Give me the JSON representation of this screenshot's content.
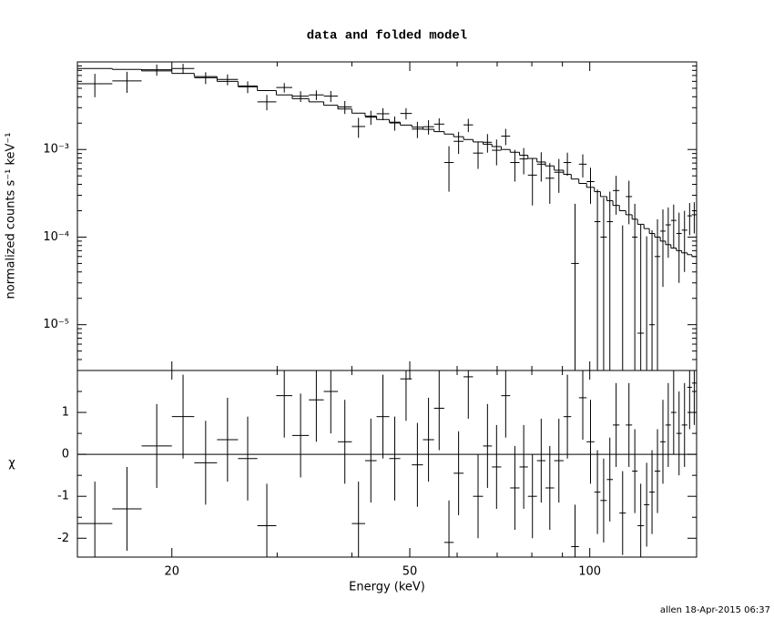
{
  "chart_data": {
    "type": "spectrum",
    "title": "data and folded model",
    "xlabel": "Energy (keV)",
    "footer": "allen 18-Apr-2015 06:37",
    "xscale": "log",
    "xlim": [
      13.9,
      150.9
    ],
    "xticks": [
      20,
      50,
      100
    ],
    "xminorticks": [
      30,
      40,
      60,
      70,
      80,
      90
    ],
    "bins": [
      13.9,
      15.9,
      17.8,
      20,
      21.8,
      23.8,
      25.8,
      27.8,
      29.9,
      31.8,
      33.9,
      35.9,
      37.9,
      40.0,
      42.1,
      44.0,
      46.2,
      48.2,
      50.4,
      52.6,
      54.9,
      57.1,
      59.2,
      61.5,
      63.8,
      66.3,
      68.6,
      71.1,
      73.6,
      76.3,
      78.8,
      81.6,
      84.3,
      87.2,
      90.4,
      93.1,
      95.9,
      98.8,
      101.8,
      104.2,
      106.8,
      109.3,
      112.1,
      114.9,
      117.7,
      120.2,
      123.2,
      125.8,
      128.4,
      131.2,
      133.9,
      136.7,
      139.6,
      142.5,
      145.6,
      148.2,
      150.9
    ],
    "panels": [
      {
        "ylabel": "normalized counts s⁻¹ keV⁻¹",
        "yscale": "log",
        "ylim": [
          3e-06,
          0.01
        ],
        "yticks": [
          {
            "value": 0.001,
            "label": "10⁻³"
          },
          {
            "value": 0.0001,
            "label": "10⁻⁴"
          },
          {
            "value": 1e-05,
            "label": "10⁻⁵"
          }
        ],
        "yminorticks": [
          4e-06,
          5e-06,
          6e-06,
          7e-06,
          8e-06,
          9e-06,
          2e-05,
          3e-05,
          4e-05,
          5e-05,
          6e-05,
          7e-05,
          8e-05,
          9e-05,
          0.0002,
          0.0003,
          0.0004,
          0.0005,
          0.0006,
          0.0007,
          0.0008,
          0.0009,
          0.002,
          0.003,
          0.004,
          0.005,
          0.006,
          0.007,
          0.008,
          0.009
        ],
        "series": [
          {
            "style": "errorbar",
            "color": "#000000",
            "values": [
              0.00563,
              0.00607,
              0.00814,
              0.0084,
              0.0066,
              0.0063,
              0.0052,
              0.0035,
              0.0051,
              0.00406,
              0.0042,
              0.00407,
              0.00306,
              0.00183,
              0.00234,
              0.00256,
              0.00201,
              0.00258,
              0.00171,
              0.00182,
              0.00195,
              0.00071,
              0.00124,
              0.00191,
              0.00091,
              0.00121,
              0.00098,
              0.00142,
              0.00071,
              0.00078,
              0.00051,
              0.00068,
              0.00047,
              0.00055,
              0.00071,
              5e-05,
              0.00068,
              0.00043,
              0.00015,
              0.0001,
              0.00015,
              0.00034,
              -2.4e-05,
              0.00029,
              0.0001,
              8e-06,
              -1.8e-05,
              1e-05,
              6e-05,
              0.000117,
              0.000138,
              0.000155,
              0.00011,
              0.00012,
              0.000175,
              0.00018
            ],
            "errors": [
              0.00168,
              0.00164,
              0.00119,
              0.00111,
              0.00102,
              0.0009,
              0.0008,
              0.0007,
              0.00063,
              0.00057,
              0.00053,
              0.00058,
              0.00052,
              0.00047,
              0.00043,
              0.0004,
              0.00037,
              0.00038,
              0.00036,
              0.00034,
              0.00032,
              0.00038,
              0.00035,
              0.00033,
              0.00031,
              0.00029,
              0.00032,
              0.0003,
              0.00028,
              0.00026,
              0.00028,
              0.00025,
              0.00023,
              0.00023,
              0.00021,
              0.00019,
              0.0002,
              0.00019,
              0.0002,
              0.00018,
              0.00018,
              0.00016,
              0.00016,
              0.00015,
              0.00014,
              0.00013,
              0.00012,
              0.00011,
              0.0001,
              9e-05,
              8e-05,
              8e-05,
              8e-05,
              8e-05,
              7e-05,
              7e-05
            ]
          },
          {
            "style": "step",
            "color": "#000000",
            "values": [
              0.0084,
              0.0082,
              0.0079,
              0.0074,
              0.0068,
              0.006,
              0.0053,
              0.0047,
              0.0042,
              0.0038,
              0.0035,
              0.0032,
              0.0029,
              0.0026,
              0.0024,
              0.0022,
              0.00205,
              0.0019,
              0.0018,
              0.0017,
              0.0016,
              0.0015,
              0.0014,
              0.0013,
              0.00122,
              0.00115,
              0.00108,
              0.001,
              0.00093,
              0.00086,
              0.00079,
              0.00072,
              0.00065,
              0.00058,
              0.00052,
              0.00046,
              0.00041,
              0.00037,
              0.00033,
              0.00029,
              0.00026,
              0.00023,
              0.0002,
              0.00018,
              0.00016,
              0.00014,
              0.000125,
              0.00011,
              0.0001,
              9e-05,
              8.2e-05,
              7.5e-05,
              7e-05,
              6.6e-05,
              6.3e-05,
              6e-05
            ]
          }
        ]
      },
      {
        "ylabel": "χ",
        "yscale": "linear",
        "ylim": [
          -2.45,
          2
        ],
        "yticks": [
          -2,
          -1,
          0,
          1
        ],
        "yminorticks": [
          -1.5,
          -0.5,
          0.5,
          1.5
        ],
        "reference_line": {
          "value": 0,
          "color": "#00e000"
        },
        "series": [
          {
            "style": "errorbar",
            "color": "#000000",
            "values": [
              -1.65,
              -1.3,
              0.2,
              0.9,
              -0.2,
              0.35,
              -0.1,
              -1.7,
              1.4,
              0.45,
              1.3,
              1.5,
              0.3,
              -1.65,
              -0.15,
              0.9,
              -0.1,
              1.8,
              -0.25,
              0.35,
              1.1,
              -2.1,
              -0.45,
              1.85,
              -1,
              0.2,
              -0.3,
              1.4,
              -0.8,
              -0.3,
              -1,
              -0.15,
              -0.8,
              -0.15,
              0.9,
              -2.2,
              1.35,
              0.3,
              -0.9,
              -1.1,
              -0.6,
              0.7,
              -1.4,
              0.7,
              -0.4,
              -1.7,
              -1.2,
              -0.9,
              -0.4,
              0.3,
              0.7,
              1,
              0.5,
              0.7,
              1.6,
              1.7
            ],
            "errors": [
              1,
              1,
              1,
              1,
              1,
              1,
              1,
              1,
              1,
              1,
              1,
              1,
              1,
              1,
              1,
              1,
              1,
              1,
              1,
              1,
              1,
              1,
              1,
              1,
              1,
              1,
              1,
              1,
              1,
              1,
              1,
              1,
              1,
              1,
              1,
              1,
              1,
              1,
              1,
              1,
              1,
              1,
              1,
              1,
              1,
              1,
              1,
              1,
              1,
              1,
              1,
              1,
              1,
              1,
              1,
              1
            ]
          }
        ]
      }
    ]
  }
}
